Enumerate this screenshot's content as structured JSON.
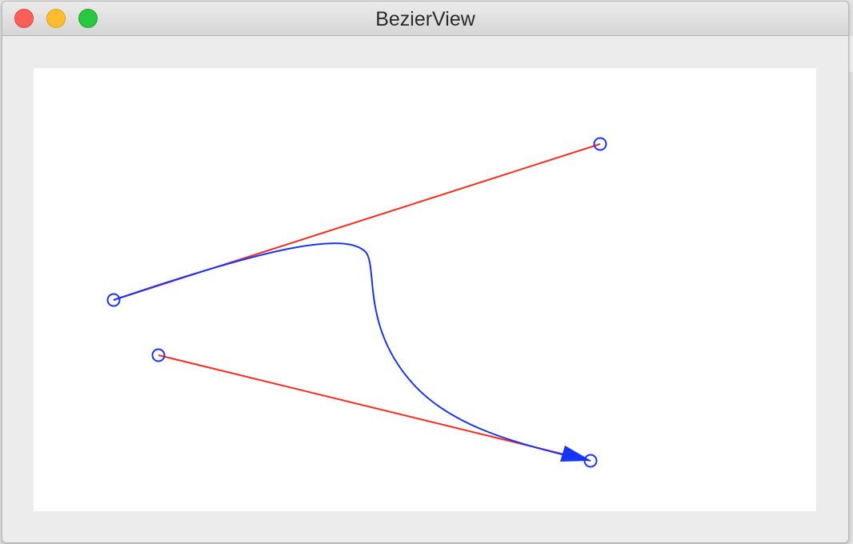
{
  "window": {
    "title": "BezierView"
  },
  "controls": {
    "close": "close-button",
    "minimize": "minimize-button",
    "zoom": "zoom-button"
  },
  "colors": {
    "curve": "#1535ff",
    "control_lines": "#ff2a1a",
    "handles": "#1535ff",
    "canvas": "#ffffff",
    "window_bg": "#ececec"
  },
  "icons": {
    "arrowhead": "arrowhead-icon",
    "handle": "circle-handle-icon"
  }
}
